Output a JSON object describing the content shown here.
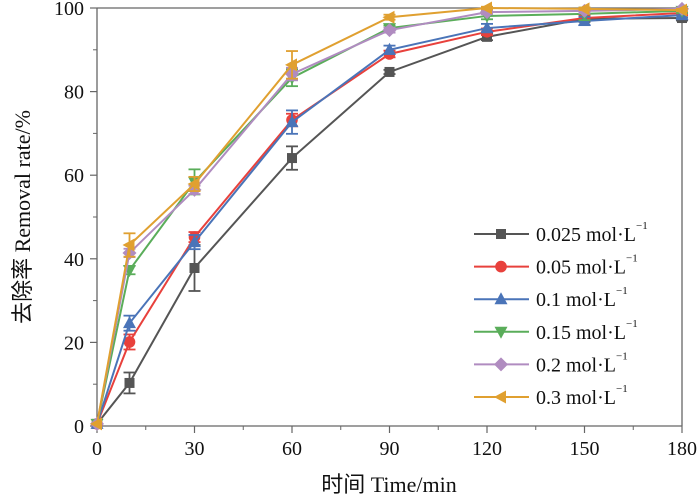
{
  "chart_data": {
    "type": "line",
    "title": "",
    "xlabel": "时间 Time/min",
    "ylabel": "去除率 Removal rate/%",
    "xlim": [
      0,
      180
    ],
    "ylim": [
      0,
      100
    ],
    "xticks": [
      0,
      30,
      60,
      90,
      120,
      150,
      180
    ],
    "xticks_minor": [
      15,
      45,
      75,
      105,
      135,
      165
    ],
    "yticks": [
      0,
      20,
      40,
      60,
      80,
      100
    ],
    "yticks_minor": [
      10,
      30,
      50,
      70,
      90
    ],
    "grid": false,
    "legend_position": "center-right",
    "x": [
      0,
      10,
      30,
      60,
      90,
      120,
      150,
      180
    ],
    "series": [
      {
        "name": "0.025 mol·L",
        "superscript": "−1",
        "color": "#555555",
        "marker": "square",
        "values": [
          0.5,
          10.3,
          37.8,
          64.1,
          84.7,
          93.1,
          97.4,
          97.6
        ],
        "errors": [
          0,
          2.5,
          5.5,
          2.8,
          0.5,
          0.8,
          0.7,
          0.6
        ]
      },
      {
        "name": "0.05 mol·L",
        "superscript": "−1",
        "color": "#e8413c",
        "marker": "circle",
        "values": [
          0.5,
          20.1,
          45.2,
          73.2,
          89.0,
          94.3,
          97.6,
          98.8
        ],
        "errors": [
          0,
          1.8,
          1.2,
          1.5,
          0.8,
          0.8,
          0.6,
          0.5
        ]
      },
      {
        "name": "0.1 mol·L",
        "superscript": "−1",
        "color": "#4a74b8",
        "marker": "triangle-up",
        "values": [
          0.5,
          24.6,
          44.0,
          72.7,
          90.0,
          95.2,
          96.9,
          98.3
        ],
        "errors": [
          0,
          1.8,
          1.7,
          2.8,
          1.0,
          1.0,
          1.0,
          0.6
        ]
      },
      {
        "name": "0.15 mol·L",
        "superscript": "−1",
        "color": "#5aad5a",
        "marker": "triangle-down",
        "values": [
          0.5,
          37.3,
          58.4,
          83.3,
          95.2,
          98.1,
          98.6,
          99.3
        ],
        "errors": [
          0,
          1.0,
          3.0,
          2.0,
          0.6,
          0.8,
          1.5,
          0.5
        ]
      },
      {
        "name": "0.2 mol·L",
        "superscript": "−1",
        "color": "#b08cc0",
        "marker": "diamond",
        "values": [
          0.5,
          41.4,
          56.5,
          84.2,
          94.7,
          99.0,
          99.3,
          99.8
        ],
        "errors": [
          0,
          1.0,
          1.0,
          1.5,
          0.6,
          0.5,
          0.5,
          0.3
        ]
      },
      {
        "name": "0.3 mol·L",
        "superscript": "−1",
        "color": "#e0a030",
        "marker": "triangle-left",
        "values": [
          0.5,
          43.3,
          57.9,
          86.4,
          97.8,
          100.0,
          99.8,
          99.5
        ],
        "errors": [
          0,
          2.8,
          1.7,
          3.3,
          0.6,
          0.3,
          0.3,
          0.3
        ]
      }
    ]
  }
}
